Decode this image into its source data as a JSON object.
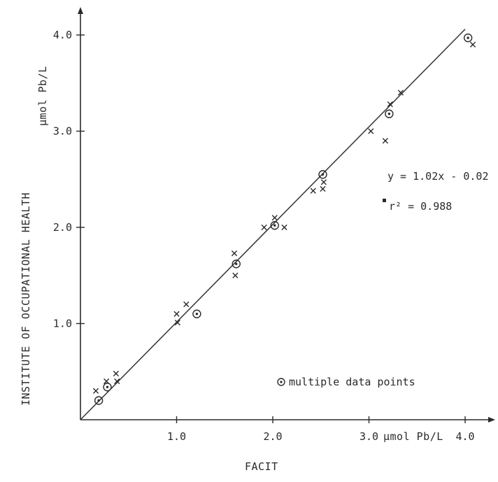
{
  "chart_data": {
    "type": "scatter",
    "xlabel": "FACIT",
    "x_unit": "µmol Pb/L",
    "ylabel": "INSTITUTE OF OCCUPATIONAL HEALTH",
    "y_unit": "µmol Pb/L",
    "xlim": [
      0,
      4.3
    ],
    "ylim": [
      0,
      4.3
    ],
    "x_ticks": [
      1.0,
      2.0,
      3.0,
      4.0
    ],
    "x_tick_labels": [
      "1.0",
      "2.0",
      "3.0",
      "4.0"
    ],
    "y_ticks": [
      1.0,
      2.0,
      3.0,
      4.0
    ],
    "y_tick_labels": [
      "1.0",
      "2.0",
      "3.0",
      "4.0"
    ],
    "grid": false,
    "regression": {
      "equation": "y = 1.02x - 0.02",
      "r2_label": "r² = 0.988",
      "slope": 1.02,
      "intercept": -0.02
    },
    "legend": {
      "label": "multiple data points",
      "marker": "circle-dot",
      "placement": "bottom-right"
    },
    "series": [
      {
        "marker": "x",
        "points": [
          [
            0.16,
            0.3
          ],
          [
            0.27,
            0.4
          ],
          [
            0.37,
            0.48
          ],
          [
            0.38,
            0.4
          ],
          [
            1.0,
            1.1
          ],
          [
            1.01,
            1.01
          ],
          [
            1.1,
            1.2
          ],
          [
            1.6,
            1.73
          ],
          [
            1.61,
            1.5
          ],
          [
            1.91,
            2.0
          ],
          [
            2.02,
            2.1
          ],
          [
            2.12,
            2.0
          ],
          [
            2.42,
            2.38
          ],
          [
            2.52,
            2.4
          ],
          [
            2.53,
            2.47
          ],
          [
            3.02,
            3.0
          ],
          [
            3.17,
            2.9
          ],
          [
            3.22,
            3.28
          ],
          [
            3.33,
            3.4
          ],
          [
            4.08,
            3.9
          ]
        ]
      },
      {
        "marker": "circle-dot",
        "points": [
          [
            0.19,
            0.2
          ],
          [
            0.28,
            0.34
          ],
          [
            1.21,
            1.1
          ],
          [
            1.62,
            1.62
          ],
          [
            2.02,
            2.02
          ],
          [
            2.52,
            2.55
          ],
          [
            3.21,
            3.18
          ],
          [
            4.03,
            3.97
          ]
        ]
      }
    ]
  }
}
